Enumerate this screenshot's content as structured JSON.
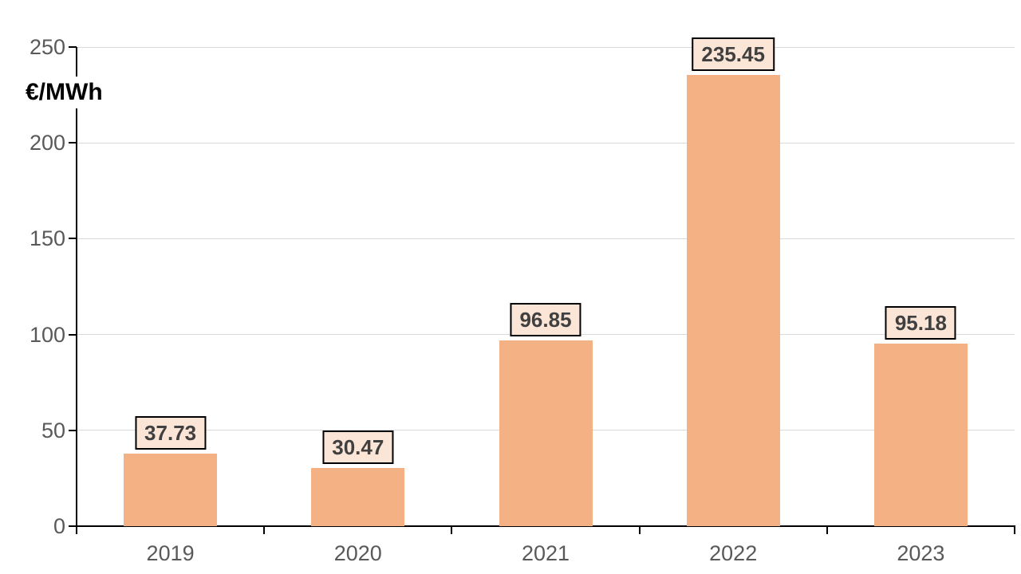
{
  "chart_data": {
    "type": "bar",
    "title": "",
    "xlabel": "",
    "ylabel": "€/MWh",
    "categories": [
      "2019",
      "2020",
      "2021",
      "2022",
      "2023"
    ],
    "values": [
      37.73,
      30.47,
      96.85,
      235.45,
      95.18
    ],
    "data_labels": [
      "37.73",
      "30.47",
      "96.85",
      "235.45",
      "95.18"
    ],
    "ylim": [
      0,
      250
    ],
    "yticks": [
      0,
      50,
      100,
      150,
      200,
      250
    ],
    "grid": "horizontal-major",
    "legend": "none",
    "colors": {
      "bar_fill": "#F4B183",
      "data_label_fill": "#FBE5D6",
      "data_label_border": "#000000",
      "data_label_text": "#404040",
      "axis_text": "#595959",
      "gridline": "#D9D9D9",
      "axis_line": "#000000",
      "background": "#FFFFFF"
    }
  }
}
